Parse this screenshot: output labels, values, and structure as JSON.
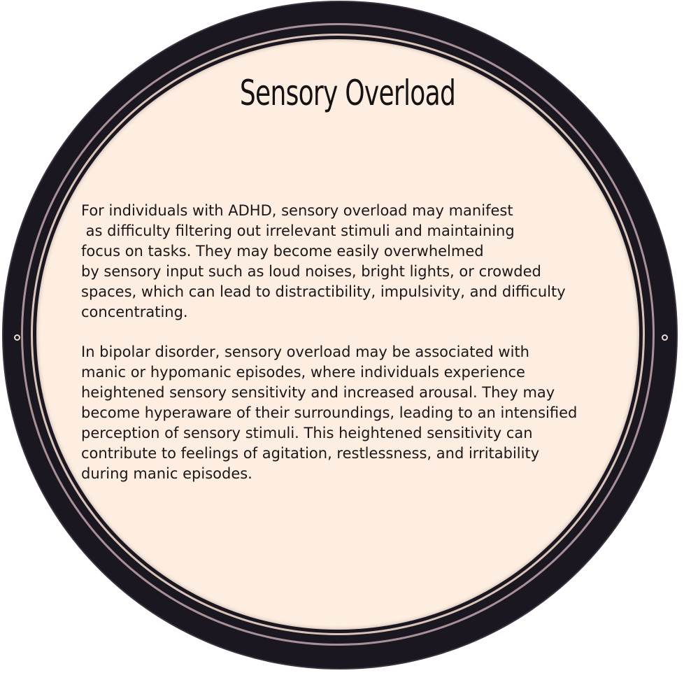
{
  "title": "Sensory Overload",
  "paragraphs": [
    {
      "lines": [
        "For individuals with ADHD, sensory overload may manifest",
        " as difficulty filtering out irrelevant stimuli and maintaining",
        "focus on tasks. They may become easily overwhelmed",
        "by sensory input such as loud noises, bright lights, or crowded",
        "spaces, which can lead to distractibility, impulsivity, and difficulty",
        "concentrating."
      ]
    },
    {
      "lines": [
        "In bipolar disorder, sensory overload may be associated with",
        "manic or hypomanic episodes, where individuals experience",
        "heightened sensory sensitivity and increased arousal. They may",
        "become hyperaware of their surroundings, leading to an intensified",
        "perception of sensory stimuli. This heightened sensitivity can",
        "contribute to feelings of agitation, restlessness, and irritability",
        "during manic episodes."
      ]
    }
  ],
  "colors": {
    "ring": "#1b1720",
    "face": "#fdeee1",
    "text": "#1b1618"
  }
}
